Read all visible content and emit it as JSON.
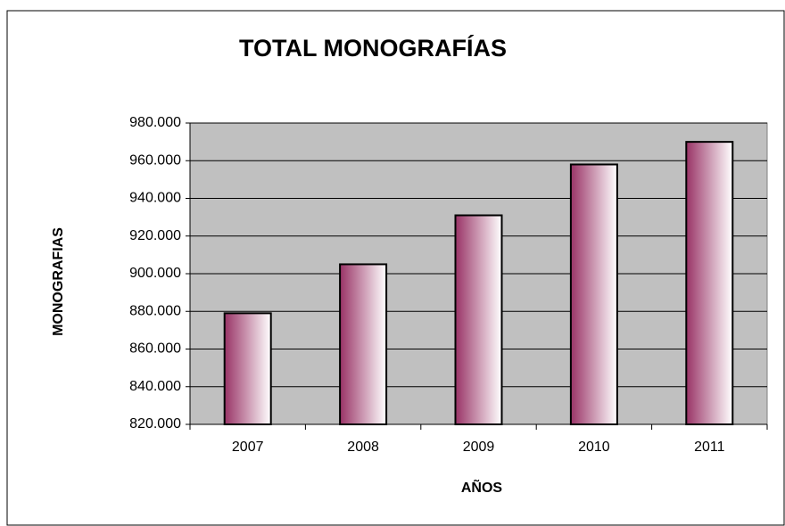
{
  "chart_data": {
    "type": "bar",
    "title": "TOTAL MONOGRAFÍAS",
    "x_label": "AÑOS",
    "y_label": "MONOGRAFIAS",
    "categories": [
      "2007",
      "2008",
      "2009",
      "2010",
      "2011"
    ],
    "values": [
      879000,
      905000,
      931000,
      958000,
      970000
    ],
    "color": "#993366",
    "ylim": [
      820000,
      980000
    ],
    "yticks": [
      {
        "value": 820000,
        "label": "820.000"
      },
      {
        "value": 840000,
        "label": "840.000"
      },
      {
        "value": 860000,
        "label": "860.000"
      },
      {
        "value": 880000,
        "label": "880.000"
      },
      {
        "value": 900000,
        "label": "900.000"
      },
      {
        "value": 920000,
        "label": "920.000"
      },
      {
        "value": 940000,
        "label": "940.000"
      },
      {
        "value": 960000,
        "label": "960.000"
      },
      {
        "value": 980000,
        "label": "980.000"
      }
    ],
    "grid": true
  }
}
